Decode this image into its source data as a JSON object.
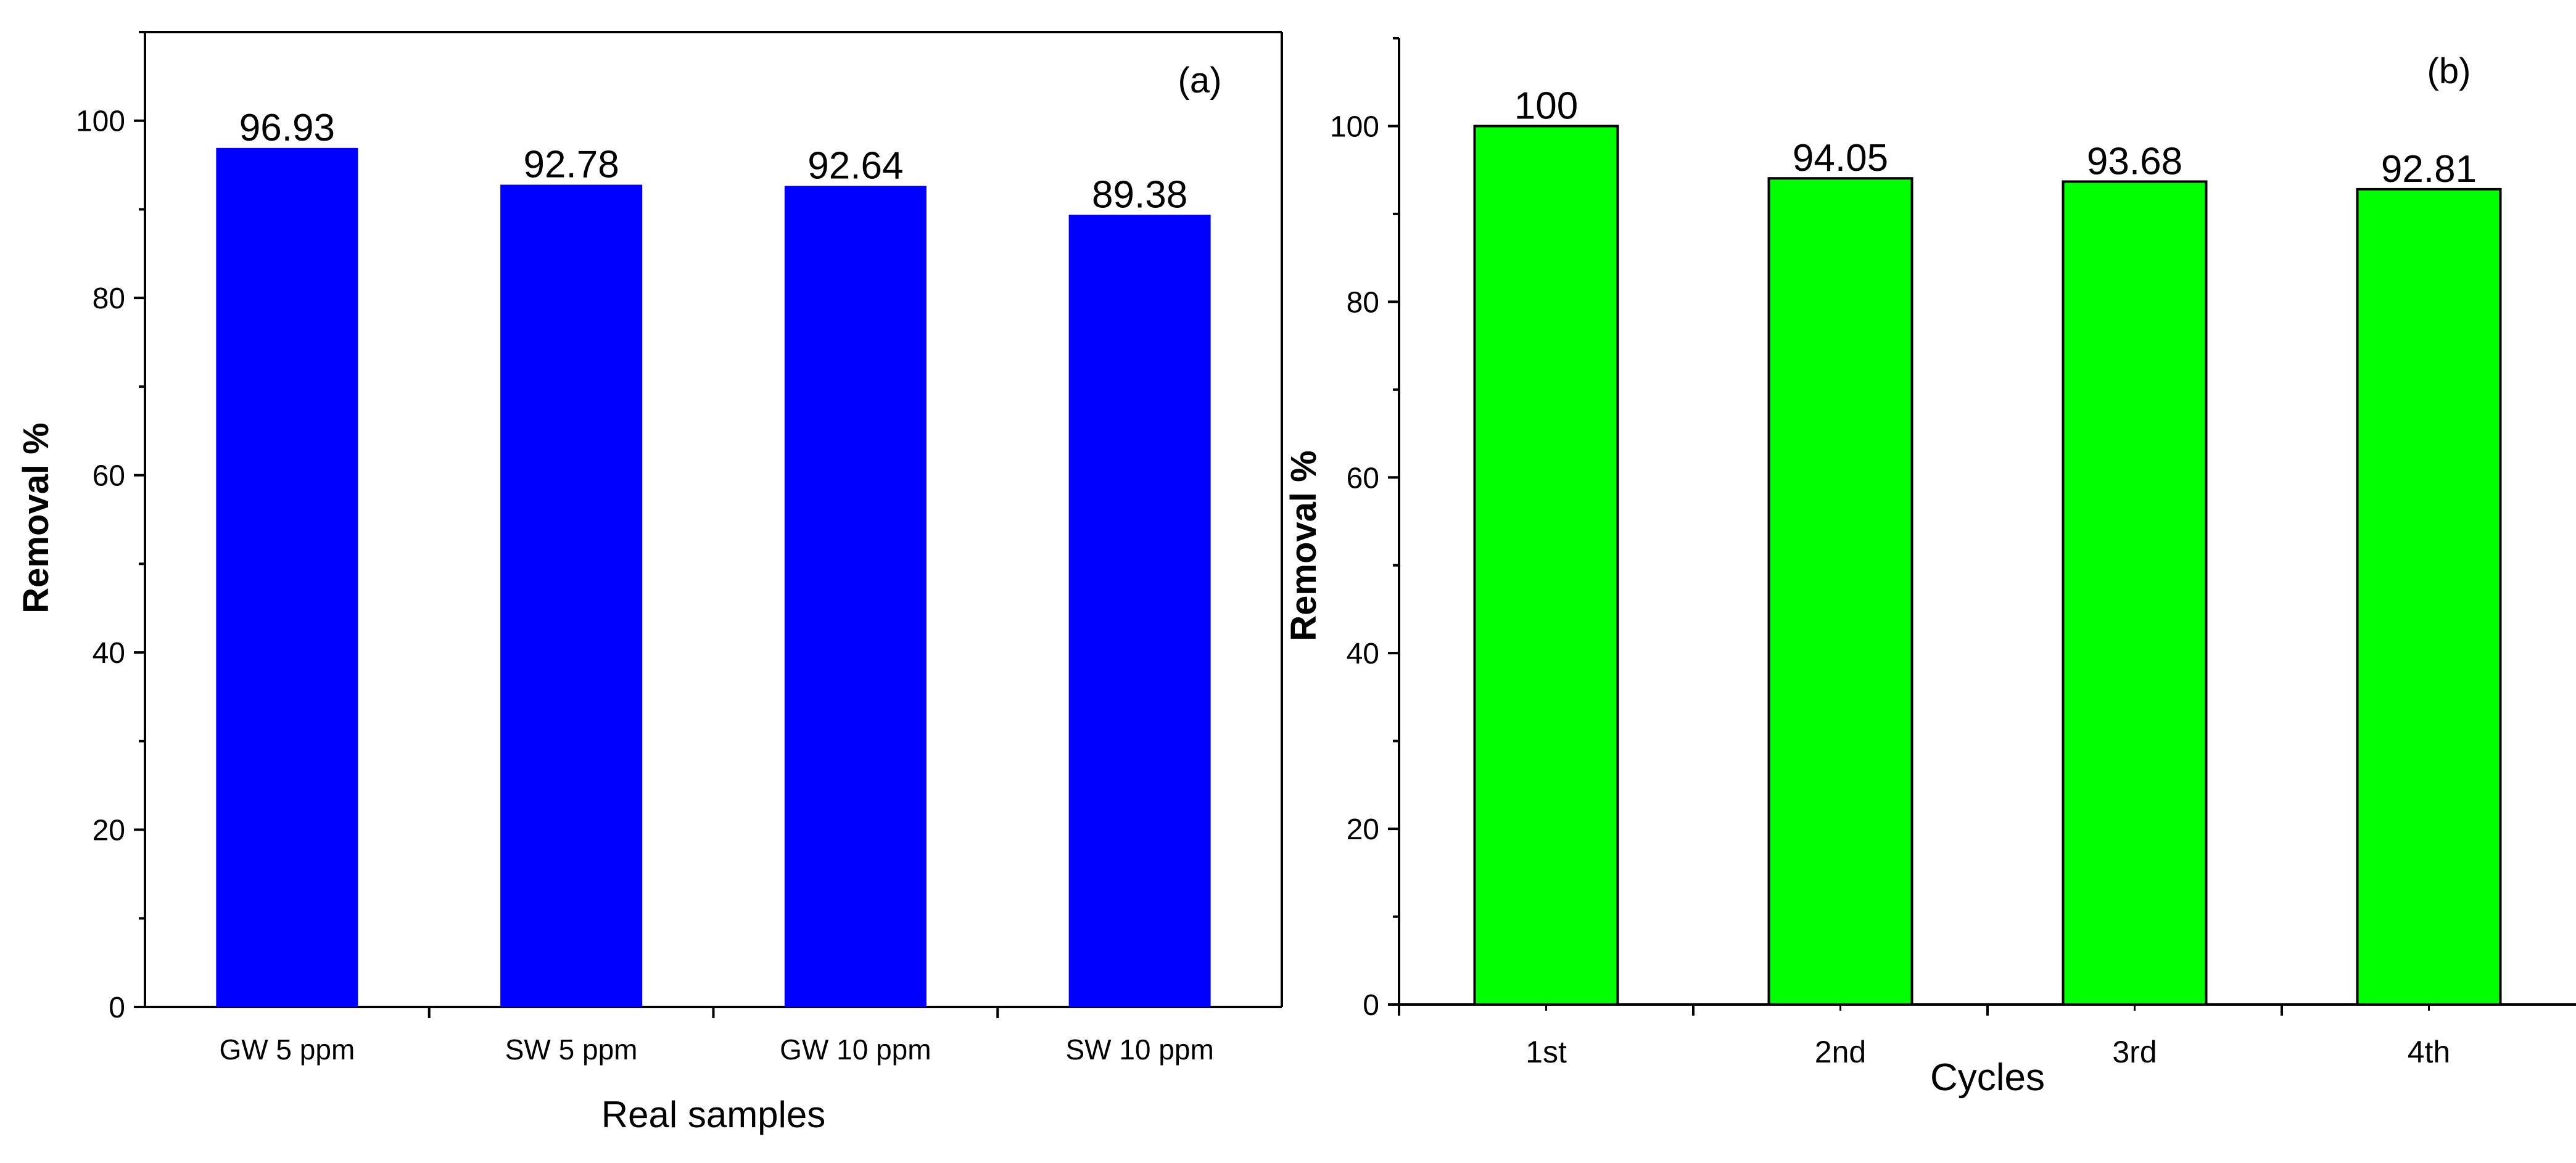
{
  "chart_data": [
    {
      "type": "bar",
      "panel_label": "(a)",
      "title": "",
      "xlabel": "Real samples",
      "ylabel": "Removal %",
      "categories": [
        "GW 5 ppm",
        "SW 5 ppm",
        "GW 10 ppm",
        "SW  10 ppm"
      ],
      "values": [
        96.93,
        92.78,
        92.64,
        89.38
      ],
      "value_labels": [
        "96.93",
        "92.78",
        "92.64",
        "89.38"
      ],
      "ylim": [
        0,
        110
      ],
      "yticks": [
        0,
        20,
        40,
        60,
        80,
        100
      ],
      "ytick_labels": [
        "0",
        "20",
        "40",
        "60",
        "80",
        "100"
      ],
      "bar_color": "#0000ff",
      "bar_edge": "#0000ff",
      "grid": false
    },
    {
      "type": "bar",
      "panel_label": "(b)",
      "title": "",
      "xlabel": "Cycles",
      "ylabel": "Removal %",
      "categories": [
        "1st",
        "2nd",
        "3rd",
        "4th"
      ],
      "values": [
        100,
        94.05,
        93.68,
        92.81
      ],
      "value_labels": [
        "100",
        "94.05",
        "93.68",
        "92.81"
      ],
      "ylim": [
        0,
        110
      ],
      "yticks": [
        0,
        20,
        40,
        60,
        80,
        100
      ],
      "ytick_labels": [
        "0",
        "20",
        "40",
        "60",
        "80",
        "100"
      ],
      "bar_color": "#00ff00",
      "bar_edge": "#000000",
      "grid": false
    }
  ]
}
